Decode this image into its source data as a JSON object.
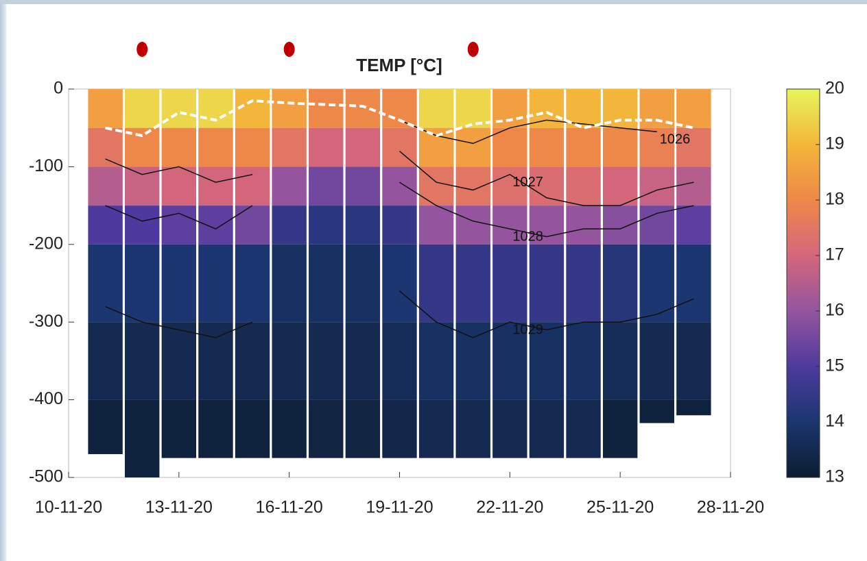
{
  "chart_data": {
    "type": "section",
    "title": "TEMP [°C]",
    "xlim": [
      "2020-11-10",
      "2020-11-28"
    ],
    "xticks": [
      {
        "value": "2020-11-10",
        "label": "10-11-20"
      },
      {
        "value": "2020-11-13",
        "label": "13-11-20"
      },
      {
        "value": "2020-11-16",
        "label": "16-11-20"
      },
      {
        "value": "2020-11-19",
        "label": "19-11-20"
      },
      {
        "value": "2020-11-22",
        "label": "22-11-20"
      },
      {
        "value": "2020-11-25",
        "label": "25-11-20"
      },
      {
        "value": "2020-11-28",
        "label": "28-11-20"
      }
    ],
    "ylim": [
      -500,
      0
    ],
    "yticks": [
      -500,
      -400,
      -300,
      -200,
      -100,
      0
    ],
    "clim": [
      13,
      20
    ],
    "cticks": [
      13,
      14,
      15,
      16,
      17,
      18,
      19,
      20
    ],
    "colors": [
      "#0c1d30",
      "#1b3670",
      "#4e3a9e",
      "#94559e",
      "#d4667c",
      "#ee8848",
      "#f4b63a",
      "#e6f55a"
    ],
    "depths": [
      0,
      -50,
      -100,
      -150,
      -200,
      -300,
      -400
    ],
    "x": [
      "2020-11-11",
      "2020-11-12",
      "2020-11-13",
      "2020-11-14",
      "2020-11-15",
      "2020-11-16",
      "2020-11-17",
      "2020-11-18",
      "2020-11-19",
      "2020-11-20",
      "2020-11-21",
      "2020-11-22",
      "2020-11-23",
      "2020-11-24",
      "2020-11-25",
      "2020-11-26",
      "2020-11-27"
    ],
    "bottom": [
      -470,
      -500,
      -475,
      -475,
      -475,
      -475,
      -475,
      -475,
      -475,
      -475,
      -475,
      -475,
      -475,
      -475,
      -475,
      -430,
      -420
    ],
    "temps": [
      [
        18.5,
        17.5,
        16.5,
        15,
        14,
        13.5,
        13.2
      ],
      [
        19.5,
        18,
        16.8,
        15,
        14,
        13.5,
        13.2
      ],
      [
        19.5,
        18,
        17,
        15.2,
        14,
        13.5,
        13.2
      ],
      [
        19.5,
        18,
        17,
        15.2,
        14,
        13.5,
        13.2
      ],
      [
        19,
        18,
        17,
        15.5,
        14,
        13.5,
        13.2
      ],
      [
        18.5,
        17.5,
        16,
        14.5,
        13.8,
        13.5,
        13.2
      ],
      [
        18,
        17,
        15.5,
        14.3,
        13.8,
        13.5,
        13.3
      ],
      [
        18,
        17,
        15.5,
        14.3,
        13.8,
        13.5,
        13.3
      ],
      [
        18,
        17.5,
        16,
        14.5,
        14,
        13.6,
        13.4
      ],
      [
        19.5,
        18.5,
        17.5,
        16,
        14.5,
        13.8,
        13.5
      ],
      [
        19.5,
        18.5,
        17.5,
        16,
        14.5,
        13.8,
        13.5
      ],
      [
        18.5,
        18,
        17.3,
        16,
        14.5,
        13.8,
        13.5
      ],
      [
        19,
        18,
        17.2,
        16,
        14.5,
        13.8,
        13.5
      ],
      [
        19,
        18,
        17.2,
        16,
        14.5,
        13.8,
        13.5
      ],
      [
        19,
        18,
        17,
        15.8,
        14.2,
        13.6,
        13.2
      ],
      [
        18.5,
        17.8,
        16.8,
        15.5,
        14,
        13.5,
        13.2
      ],
      [
        18.5,
        17.5,
        16.5,
        15.2,
        14,
        13.5,
        13.2
      ]
    ],
    "mld": [
      -50,
      -60,
      -30,
      -40,
      -15,
      -18,
      -20,
      -22,
      -40,
      -60,
      -45,
      -40,
      -30,
      -50,
      -40,
      -40,
      -50
    ],
    "contours": [
      {
        "label": "1026",
        "depth": [
          null,
          null,
          null,
          null,
          null,
          null,
          null,
          null,
          -40,
          -60,
          -70,
          -50,
          -40,
          -45,
          -50,
          -55,
          null
        ]
      },
      {
        "label": "1027",
        "depth": [
          -90,
          -110,
          -100,
          -120,
          -110,
          null,
          null,
          null,
          -80,
          -120,
          -130,
          -110,
          -140,
          -150,
          -150,
          -130,
          -120
        ]
      },
      {
        "label": "1028",
        "depth": [
          -150,
          -170,
          -160,
          -180,
          -150,
          null,
          null,
          null,
          -120,
          -150,
          -170,
          -180,
          -190,
          -180,
          -180,
          -160,
          -150
        ]
      },
      {
        "label": "1029",
        "depth": [
          -280,
          -300,
          -310,
          -320,
          -300,
          null,
          null,
          null,
          -260,
          -300,
          -320,
          -300,
          -310,
          -300,
          -300,
          -290,
          -270
        ]
      }
    ],
    "stations": [
      "2020-11-12",
      "2020-11-16",
      "2020-11-21"
    ]
  }
}
